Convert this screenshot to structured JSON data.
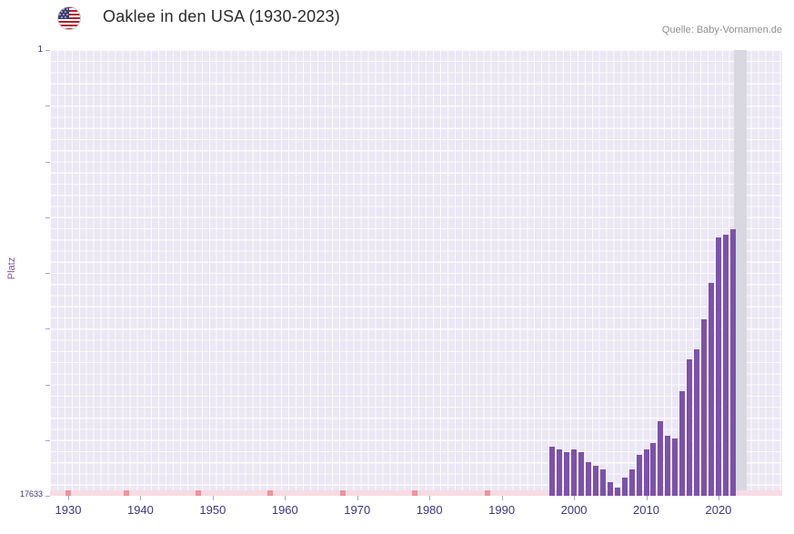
{
  "header": {
    "title": "Oaklee in den USA (1930-2023)",
    "source": "Quelle: Baby-Vornamen.de"
  },
  "chart_data": {
    "type": "bar",
    "title": "Oaklee in den USA (1930-2023)",
    "source": "Quelle: Baby-Vornamen.de",
    "ylabel": "Platz",
    "y_axis": {
      "min": 1,
      "max": 17633,
      "inverted": true,
      "top_label": "1",
      "bottom_label": "17633"
    },
    "x_axis": {
      "range": [
        1930,
        2023
      ],
      "ticks": [
        1930,
        1940,
        1950,
        1960,
        1970,
        1980,
        1990,
        2000,
        2010,
        2020
      ]
    },
    "bars": {
      "years": [
        1997,
        1998,
        1999,
        2000,
        2001,
        2002,
        2003,
        2004,
        2005,
        2006,
        2007,
        2008,
        2009,
        2010,
        2011,
        2012,
        2013,
        2014,
        2015,
        2016,
        2017,
        2018,
        2019,
        2020,
        2021,
        2022
      ],
      "ranks": [
        15700,
        15800,
        15900,
        15800,
        15900,
        16300,
        16450,
        16600,
        17100,
        17300,
        16900,
        16600,
        16000,
        15800,
        15550,
        14700,
        15250,
        15350,
        13500,
        12250,
        11850,
        10650,
        9200,
        7400,
        7300,
        7100
      ]
    },
    "no_rank_marker_years": [
      1930,
      1938,
      1948,
      1958,
      1968,
      1978,
      1988
    ],
    "highlight_year": 2023,
    "grid": true,
    "legend_position": "none",
    "colors": {
      "bar": "#7d52aa",
      "plot_bg": "#ebe7f4",
      "grid": "#ffffff",
      "strip": "#f8dce3",
      "strip_mark": "#ec94a1",
      "highlight_band": "#d9d8e0",
      "tick_label": "#3d3580",
      "title": "#2b2b2b",
      "source": "#8f8f8f",
      "y_label": "#7b57a8"
    }
  }
}
